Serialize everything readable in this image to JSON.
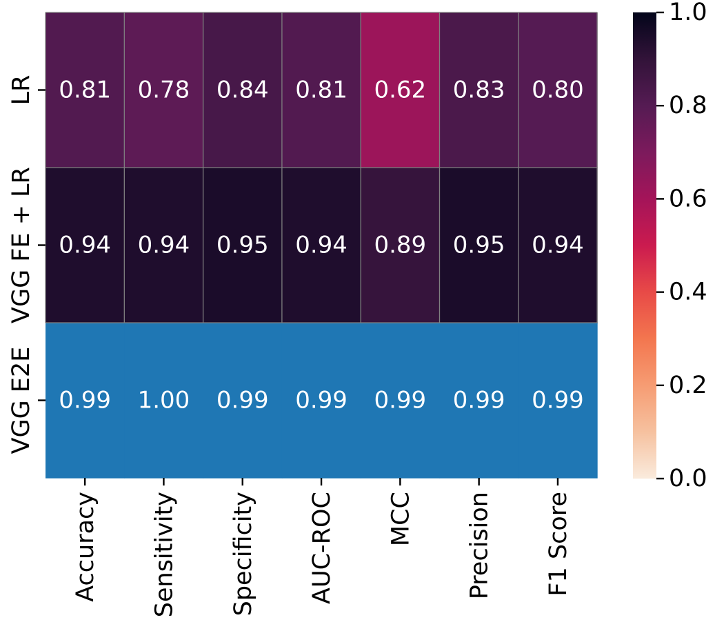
{
  "chart_data": {
    "type": "heatmap",
    "rows": [
      "LR",
      "VGG FE + LR",
      "VGG E2E"
    ],
    "columns": [
      "Accuracy",
      "Sensitivity",
      "Specificity",
      "AUC-ROC",
      "MCC",
      "Precision",
      "F1 Score"
    ],
    "values": [
      [
        0.81,
        0.78,
        0.84,
        0.81,
        0.62,
        0.83,
        0.8
      ],
      [
        0.94,
        0.94,
        0.95,
        0.94,
        0.89,
        0.95,
        0.94
      ],
      [
        0.99,
        1.0,
        0.99,
        0.99,
        0.99,
        0.99,
        0.99
      ]
    ],
    "cell_labels": [
      [
        "0.81",
        "0.78",
        "0.84",
        "0.81",
        "0.62",
        "0.83",
        "0.80"
      ],
      [
        "0.94",
        "0.94",
        "0.95",
        "0.94",
        "0.89",
        "0.95",
        "0.94"
      ],
      [
        "0.99",
        "1.00",
        "0.99",
        "0.99",
        "0.99",
        "0.99",
        "0.99"
      ]
    ],
    "highlight_row": 2,
    "highlight_color": "#1f77b4",
    "colormap": "rocket",
    "colorbar": {
      "range": [
        0.0,
        1.0
      ],
      "ticks": [
        "0.0",
        "0.2",
        "0.4",
        "0.6",
        "0.8",
        "1.0"
      ]
    },
    "grid_color": "#808080"
  }
}
